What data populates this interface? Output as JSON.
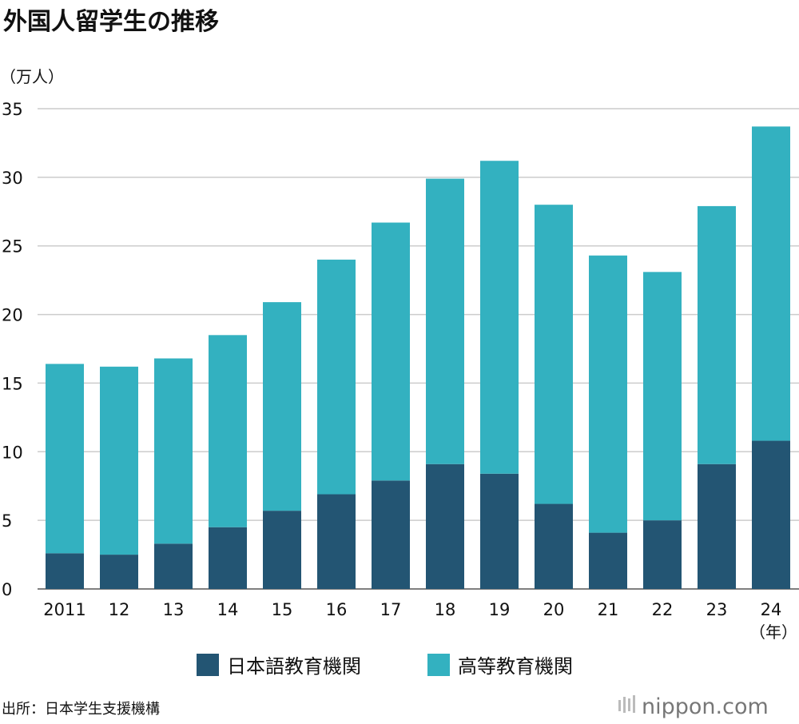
{
  "chart_data": {
    "type": "bar",
    "stacked": true,
    "title": "外国人留学生の推移",
    "ylabel": "（万人）",
    "xlabel": "（年）",
    "ylim": [
      0,
      35
    ],
    "yticks": [
      0,
      5,
      10,
      15,
      20,
      25,
      30,
      35
    ],
    "grid": true,
    "legend_position": "bottom",
    "categories": [
      "2011",
      "12",
      "13",
      "14",
      "15",
      "16",
      "17",
      "18",
      "19",
      "20",
      "21",
      "22",
      "23",
      "24"
    ],
    "series": [
      {
        "name": "日本語教育機関",
        "color": "#235573",
        "values": [
          2.6,
          2.5,
          3.3,
          4.5,
          5.7,
          6.9,
          7.9,
          9.1,
          8.4,
          6.2,
          4.1,
          5.0,
          9.1,
          10.8
        ]
      },
      {
        "name": "高等教育機関",
        "color": "#33b1c0",
        "values": [
          13.8,
          13.7,
          13.5,
          14.0,
          15.2,
          17.1,
          18.8,
          20.8,
          22.8,
          21.8,
          20.2,
          18.1,
          18.8,
          22.9
        ]
      }
    ]
  },
  "source": "出所：日本学生支援機構",
  "logo": "nippon.com"
}
